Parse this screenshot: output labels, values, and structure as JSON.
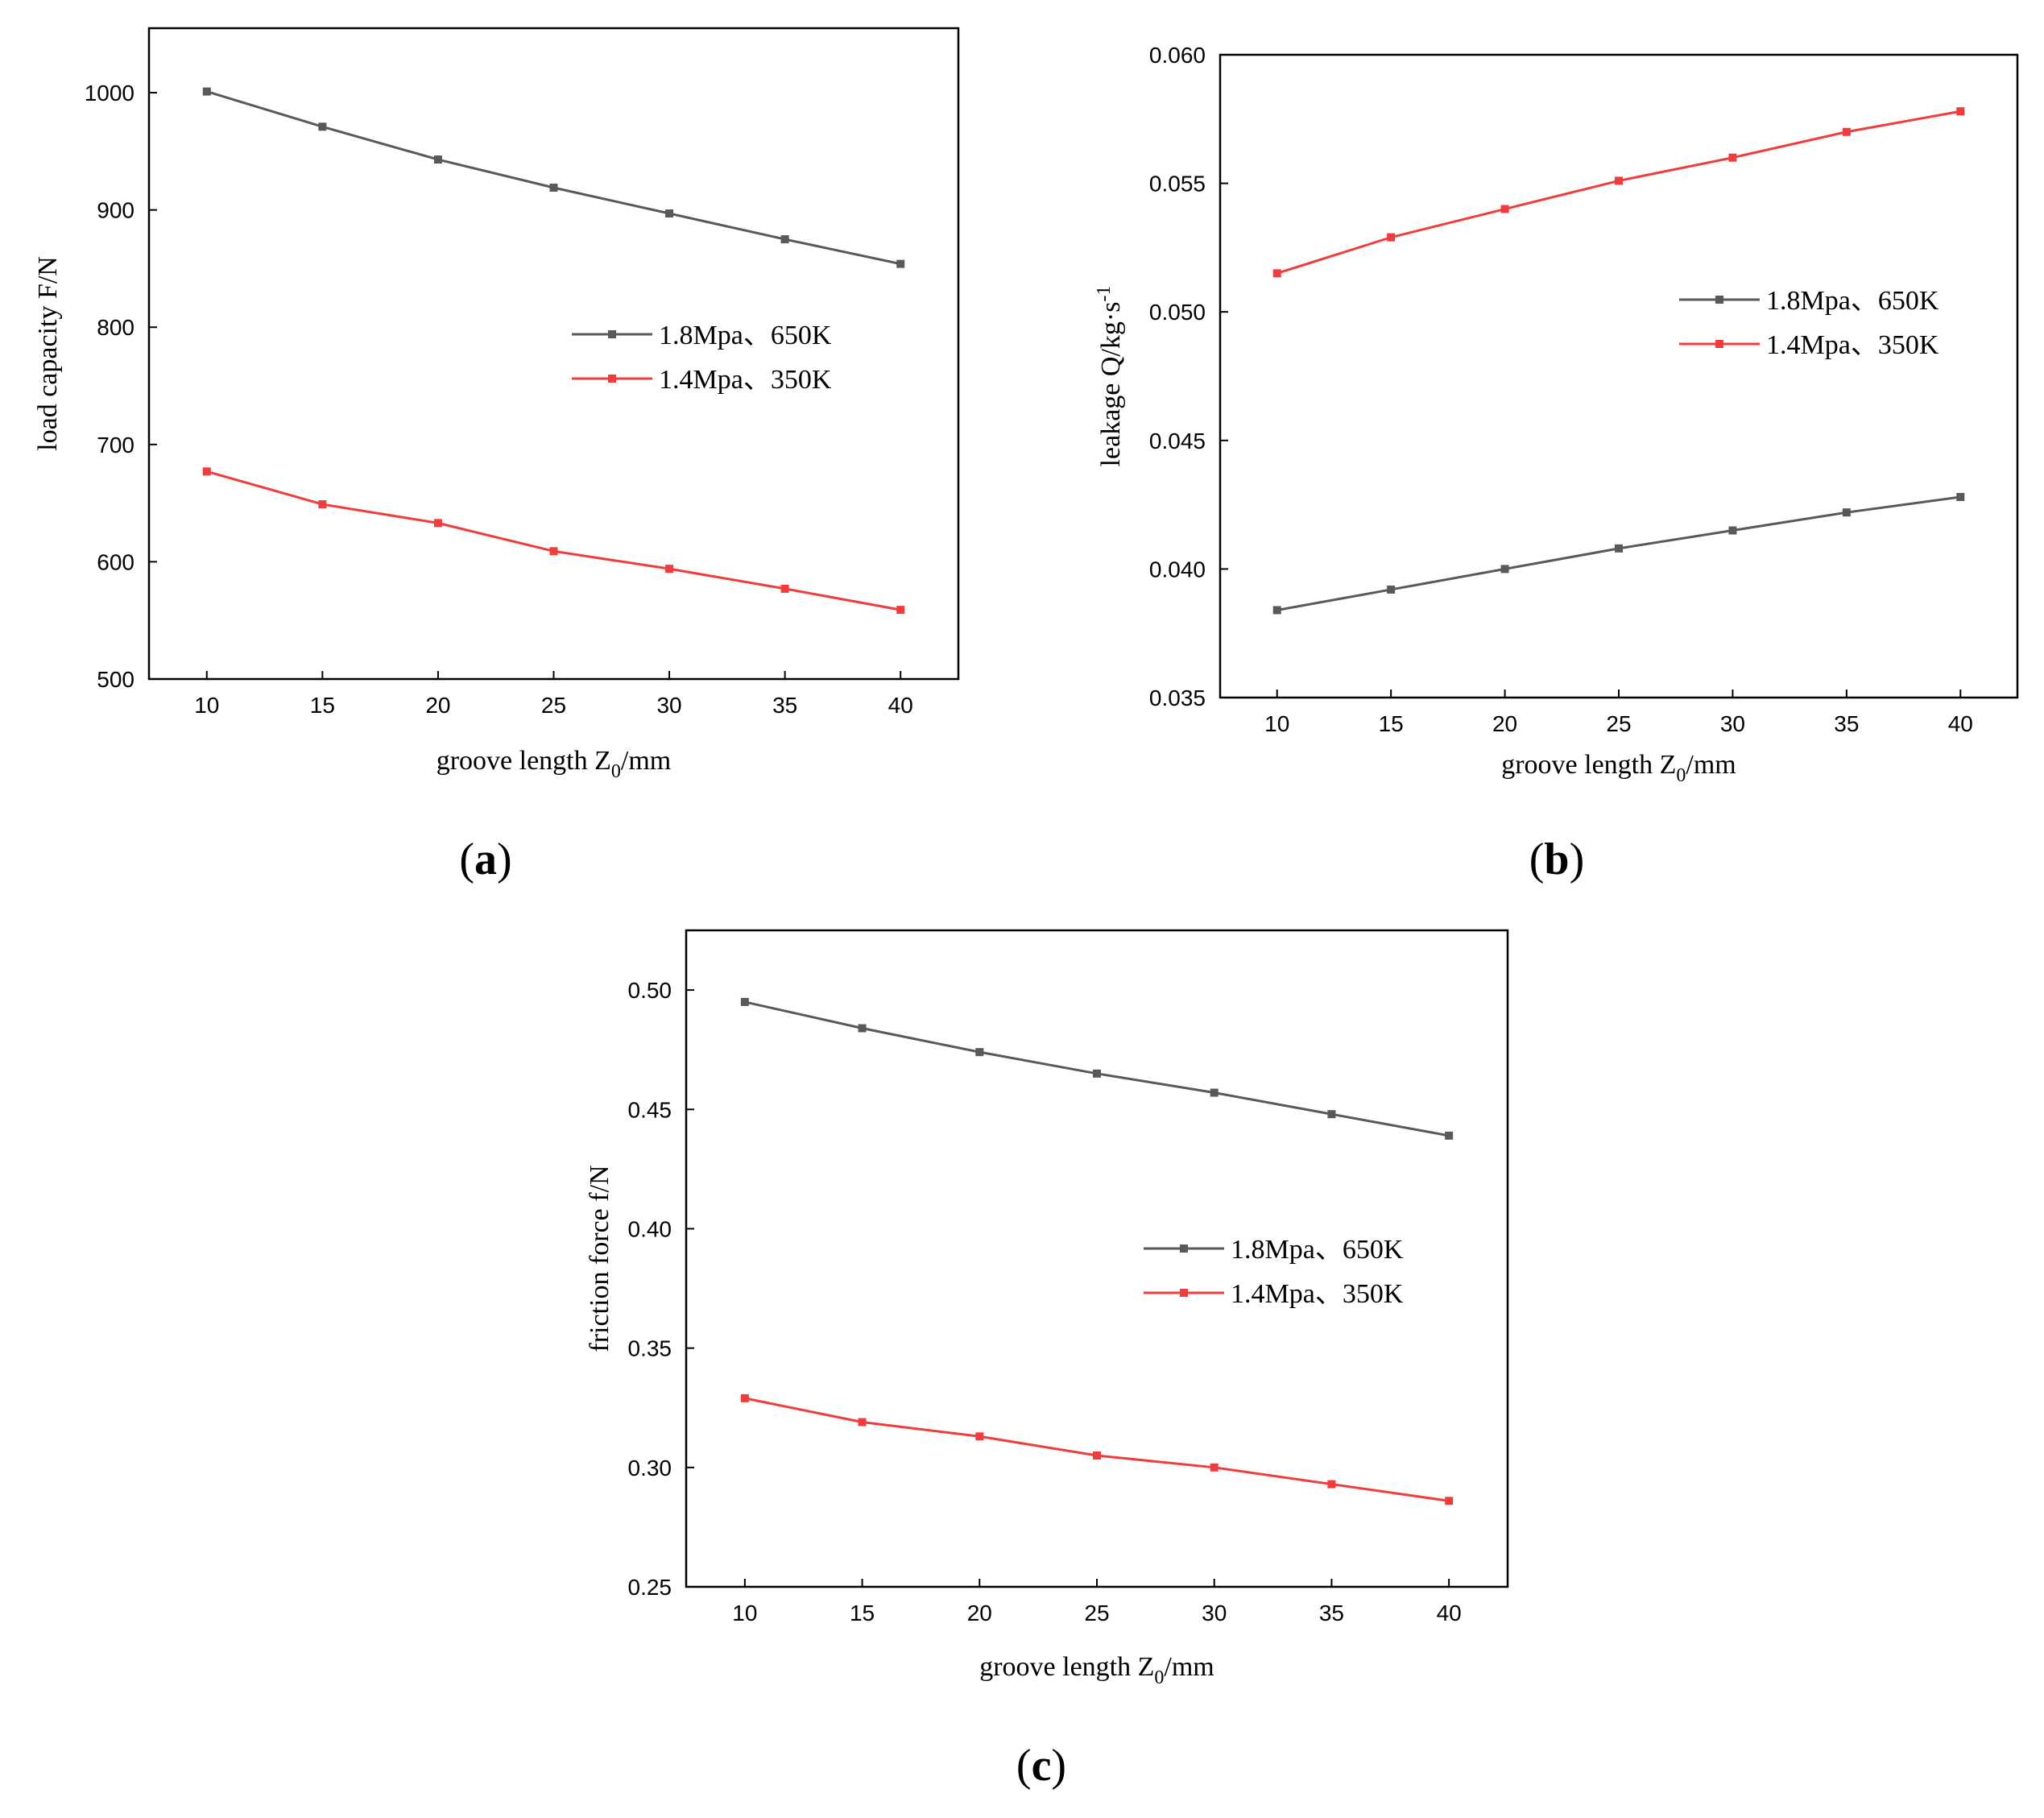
{
  "chart_data": [
    {
      "type": "line",
      "id": "a",
      "caption_open": "(",
      "caption_letter": "a",
      "caption_close": ")",
      "xlabel": "groove length Z",
      "xlabel_sub": "0",
      "xlabel_suffix": "/mm",
      "ylabel": "load capacity F/N",
      "x": [
        10,
        15,
        20,
        25,
        30,
        35,
        40
      ],
      "xlim": [
        7.5,
        42.5
      ],
      "ylim": [
        500,
        1055
      ],
      "yticks": [
        500,
        600,
        700,
        800,
        900,
        1000
      ],
      "ytick_labels": [
        "500",
        "600",
        "700",
        "800",
        "900",
        "1000"
      ],
      "legend_position": "center-right",
      "series": [
        {
          "name": "1.8Mpa、650K",
          "color": "#595959",
          "values": [
            1001,
            971,
            943,
            919,
            897,
            875,
            854
          ]
        },
        {
          "name": "1.4Mpa、350K",
          "color": "#f03c3c",
          "values": [
            677,
            649,
            633,
            609,
            594,
            577,
            559
          ]
        }
      ]
    },
    {
      "type": "line",
      "id": "b",
      "caption_open": "(",
      "caption_letter": "b",
      "caption_close": ")",
      "xlabel": "groove length Z",
      "xlabel_sub": "0",
      "xlabel_suffix": "/mm",
      "ylabel": "leakage Q/kg·s",
      "ylabel_sup": "-1",
      "x": [
        10,
        15,
        20,
        25,
        30,
        35,
        40
      ],
      "xlim": [
        7.5,
        42.5
      ],
      "ylim": [
        0.035,
        0.06
      ],
      "yticks": [
        0.035,
        0.04,
        0.045,
        0.05,
        0.055,
        0.06
      ],
      "ytick_labels": [
        "0.035",
        "0.040",
        "0.045",
        "0.050",
        "0.055",
        "0.060"
      ],
      "legend_position": "center-right",
      "series": [
        {
          "name": "1.8Mpa、650K",
          "color": "#595959",
          "values": [
            0.0384,
            0.0392,
            0.04,
            0.0408,
            0.0415,
            0.0422,
            0.0428
          ]
        },
        {
          "name": "1.4Mpa、350K",
          "color": "#f03c3c",
          "values": [
            0.0515,
            0.0529,
            0.054,
            0.0551,
            0.056,
            0.057,
            0.0578
          ]
        }
      ]
    },
    {
      "type": "line",
      "id": "c",
      "caption_open": "(",
      "caption_letter": "c",
      "caption_close": ")",
      "xlabel": "groove length Z",
      "xlabel_sub": "0",
      "xlabel_suffix": "/mm",
      "ylabel": "friction force f/N",
      "x": [
        10,
        15,
        20,
        25,
        30,
        35,
        40
      ],
      "xlim": [
        7.5,
        42.5
      ],
      "ylim": [
        0.25,
        0.525
      ],
      "yticks": [
        0.25,
        0.3,
        0.35,
        0.4,
        0.45,
        0.5
      ],
      "ytick_labels": [
        "0.25",
        "0.30",
        "0.35",
        "0.40",
        "0.45",
        "0.50"
      ],
      "legend_position": "center-right",
      "series": [
        {
          "name": "1.8Mpa、650K",
          "color": "#595959",
          "values": [
            0.495,
            0.484,
            0.474,
            0.465,
            0.457,
            0.448,
            0.439
          ]
        },
        {
          "name": "1.4Mpa、350K",
          "color": "#f03c3c",
          "values": [
            0.329,
            0.319,
            0.313,
            0.305,
            0.3,
            0.293,
            0.286
          ]
        }
      ]
    }
  ]
}
